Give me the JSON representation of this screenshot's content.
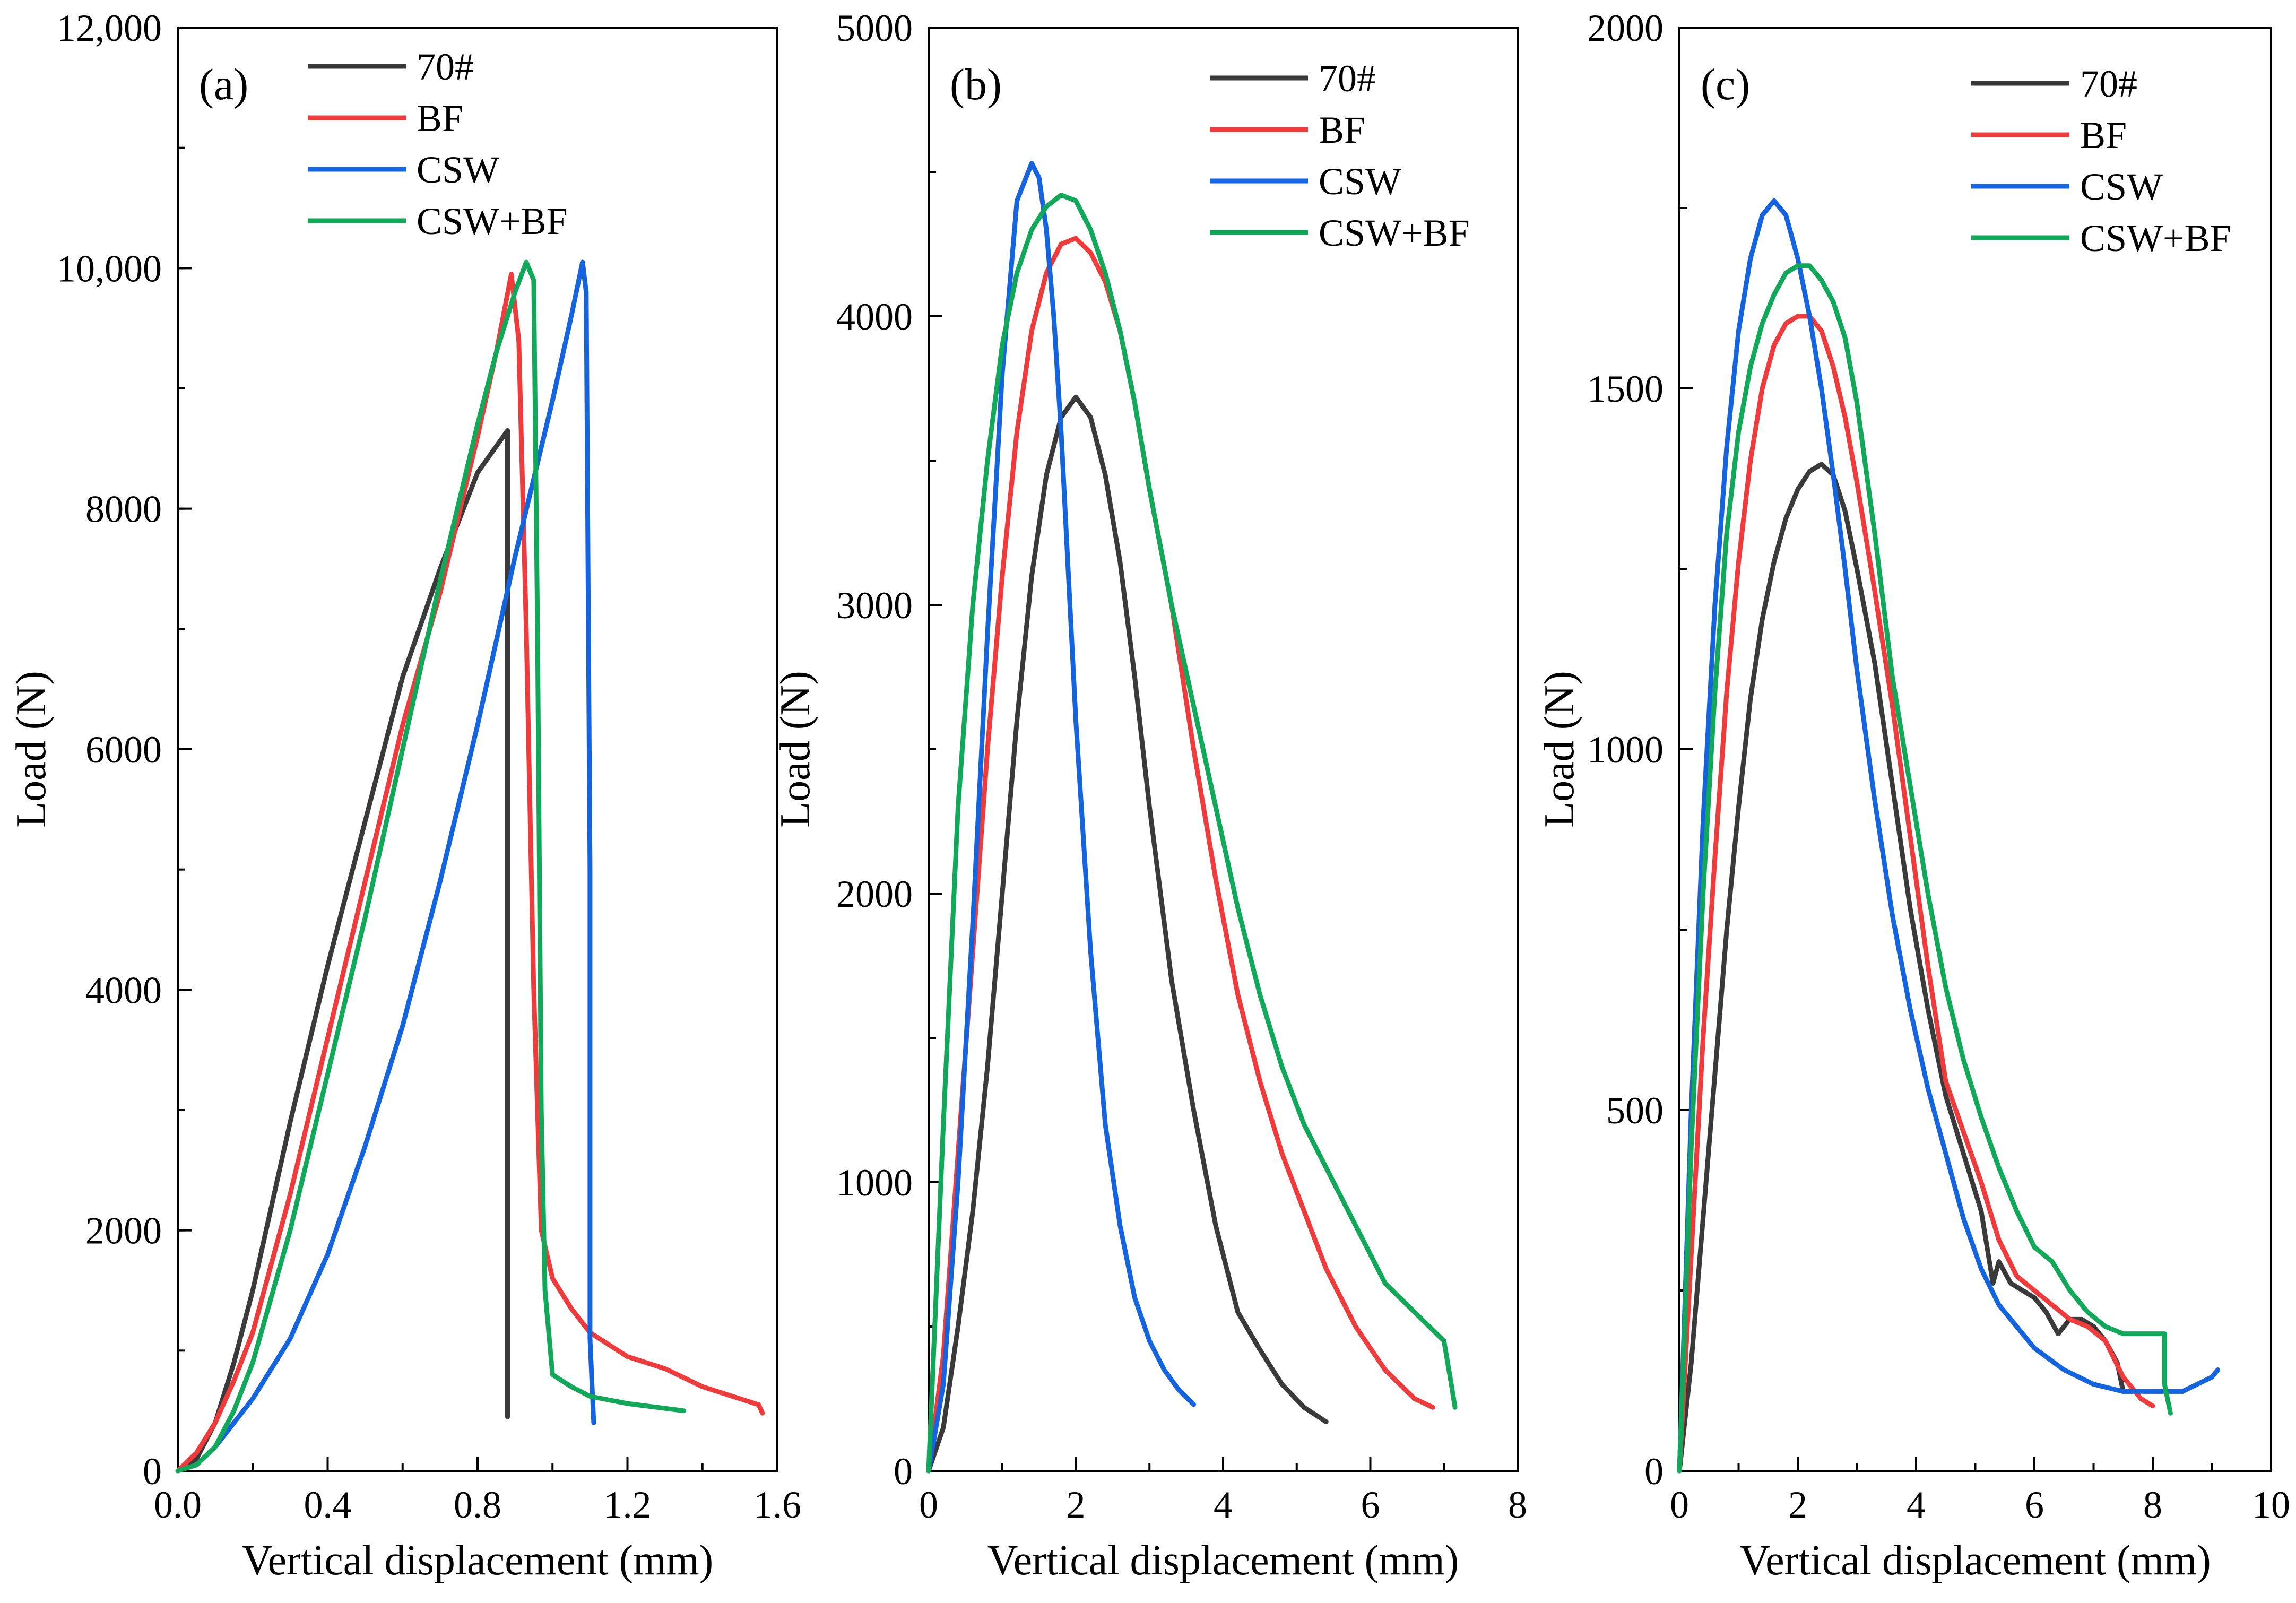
{
  "colors": {
    "70#": "#3a3a3a",
    "BF": "#ef3b3b",
    "CSW": "#1464e0",
    "CSW+BF": "#12a85a"
  },
  "chart_data": [
    {
      "type": "line",
      "panel_label": "(a)",
      "xlabel": "Vertical displacement (mm)",
      "ylabel": "Load (N)",
      "xlim": [
        0,
        1.6
      ],
      "ylim": [
        0,
        12000
      ],
      "xticks": [
        0.0,
        0.4,
        0.8,
        1.2,
        1.6
      ],
      "xtick_labels": [
        "0.0",
        "0.4",
        "0.8",
        "1.2",
        "1.6"
      ],
      "yticks": [
        0,
        2000,
        4000,
        6000,
        8000,
        10000,
        12000
      ],
      "ytick_labels": [
        "0",
        "2000",
        "4000",
        "6000",
        "8000",
        "10,000",
        "12,000"
      ],
      "x_minor": 0.2,
      "y_minor": 1000,
      "legend_position": "top-center",
      "series": [
        {
          "name": "70#",
          "x": [
            0,
            0.05,
            0.1,
            0.15,
            0.2,
            0.3,
            0.4,
            0.5,
            0.6,
            0.7,
            0.8,
            0.88,
            0.88,
            0.88
          ],
          "y": [
            0,
            100,
            400,
            900,
            1500,
            2900,
            4200,
            5400,
            6600,
            7500,
            8300,
            8650,
            3000,
            450
          ]
        },
        {
          "name": "BF",
          "x": [
            0,
            0.05,
            0.1,
            0.15,
            0.2,
            0.3,
            0.4,
            0.5,
            0.6,
            0.7,
            0.8,
            0.85,
            0.89,
            0.91,
            0.93,
            0.95,
            0.97,
            1.0,
            1.05,
            1.1,
            1.2,
            1.3,
            1.4,
            1.5,
            1.55,
            1.56
          ],
          "y": [
            0,
            150,
            400,
            750,
            1150,
            2300,
            3600,
            4900,
            6200,
            7300,
            8600,
            9300,
            9950,
            9400,
            7000,
            4000,
            2000,
            1600,
            1350,
            1150,
            950,
            850,
            700,
            600,
            550,
            480
          ]
        },
        {
          "name": "CSW",
          "x": [
            0,
            0.05,
            0.1,
            0.2,
            0.3,
            0.4,
            0.5,
            0.6,
            0.7,
            0.8,
            0.9,
            1.0,
            1.05,
            1.08,
            1.09,
            1.1,
            1.1,
            1.11
          ],
          "y": [
            0,
            50,
            200,
            600,
            1100,
            1800,
            2700,
            3700,
            4900,
            6200,
            7600,
            8900,
            9600,
            10050,
            9800,
            5000,
            1100,
            400
          ]
        },
        {
          "name": "CSW+BF",
          "x": [
            0,
            0.05,
            0.1,
            0.15,
            0.2,
            0.3,
            0.4,
            0.5,
            0.6,
            0.7,
            0.8,
            0.85,
            0.9,
            0.93,
            0.95,
            0.96,
            0.97,
            0.98,
            1.0,
            1.05,
            1.1,
            1.2,
            1.3,
            1.35
          ],
          "y": [
            0,
            50,
            200,
            500,
            900,
            2000,
            3300,
            4600,
            6000,
            7400,
            8700,
            9300,
            9800,
            10050,
            9900,
            7000,
            3000,
            1500,
            800,
            700,
            620,
            560,
            520,
            500
          ]
        }
      ]
    },
    {
      "type": "line",
      "panel_label": "(b)",
      "xlabel": "Vertical displacement (mm)",
      "ylabel": "Load (N)",
      "xlim": [
        0,
        8
      ],
      "ylim": [
        0,
        5000
      ],
      "xticks": [
        0,
        2,
        4,
        6,
        8
      ],
      "xtick_labels": [
        "0",
        "2",
        "4",
        "6",
        "8"
      ],
      "yticks": [
        0,
        1000,
        2000,
        3000,
        4000,
        5000
      ],
      "ytick_labels": [
        "0",
        "1000",
        "2000",
        "3000",
        "4000",
        "5000"
      ],
      "x_minor": 1,
      "y_minor": 500,
      "legend_position": "top-right",
      "series": [
        {
          "name": "70#",
          "x": [
            0,
            0.2,
            0.4,
            0.6,
            0.8,
            1.0,
            1.2,
            1.4,
            1.6,
            1.8,
            2.0,
            2.2,
            2.4,
            2.6,
            2.8,
            3.0,
            3.3,
            3.6,
            3.9,
            4.2,
            4.5,
            4.8,
            5.1,
            5.4
          ],
          "y": [
            0,
            150,
            500,
            900,
            1400,
            2000,
            2600,
            3100,
            3450,
            3650,
            3720,
            3650,
            3450,
            3150,
            2750,
            2300,
            1700,
            1250,
            850,
            550,
            420,
            300,
            220,
            170
          ]
        },
        {
          "name": "BF",
          "x": [
            0,
            0.2,
            0.4,
            0.6,
            0.8,
            1.0,
            1.2,
            1.4,
            1.6,
            1.8,
            2.0,
            2.2,
            2.4,
            2.6,
            2.8,
            3.0,
            3.3,
            3.6,
            3.9,
            4.2,
            4.5,
            4.8,
            5.1,
            5.4,
            5.8,
            6.2,
            6.6,
            6.85
          ],
          "y": [
            0,
            400,
            1100,
            1800,
            2500,
            3100,
            3600,
            3950,
            4150,
            4250,
            4270,
            4220,
            4120,
            3950,
            3700,
            3400,
            3000,
            2500,
            2050,
            1650,
            1350,
            1100,
            900,
            700,
            500,
            350,
            250,
            220
          ]
        },
        {
          "name": "CSW",
          "x": [
            0,
            0.2,
            0.4,
            0.6,
            0.8,
            1.0,
            1.2,
            1.4,
            1.5,
            1.6,
            1.7,
            1.8,
            1.9,
            2.0,
            2.2,
            2.4,
            2.6,
            2.8,
            3.0,
            3.2,
            3.4,
            3.6
          ],
          "y": [
            0,
            300,
            1000,
            1900,
            2900,
            3800,
            4400,
            4530,
            4480,
            4300,
            4000,
            3600,
            3100,
            2600,
            1800,
            1200,
            850,
            600,
            450,
            350,
            280,
            230
          ]
        },
        {
          "name": "CSW+BF",
          "x": [
            0,
            0.2,
            0.4,
            0.6,
            0.8,
            1.0,
            1.2,
            1.4,
            1.6,
            1.8,
            2.0,
            2.2,
            2.4,
            2.6,
            2.8,
            3.0,
            3.3,
            3.6,
            3.9,
            4.2,
            4.5,
            4.8,
            5.1,
            5.4,
            5.8,
            6.2,
            6.6,
            7.0,
            7.1,
            7.15
          ],
          "y": [
            0,
            1200,
            2300,
            3000,
            3500,
            3900,
            4150,
            4300,
            4380,
            4420,
            4400,
            4300,
            4150,
            3950,
            3700,
            3400,
            3000,
            2650,
            2300,
            1950,
            1650,
            1400,
            1200,
            1050,
            850,
            650,
            550,
            450,
            300,
            220
          ]
        }
      ]
    },
    {
      "type": "line",
      "panel_label": "(c)",
      "xlabel": "Vertical displacement (mm)",
      "ylabel": "Load (N)",
      "xlim": [
        0,
        10
      ],
      "ylim": [
        0,
        2000
      ],
      "xticks": [
        0,
        2,
        4,
        6,
        8,
        10
      ],
      "xtick_labels": [
        "0",
        "2",
        "4",
        "6",
        "8",
        "10"
      ],
      "yticks": [
        0,
        500,
        1000,
        1500,
        2000
      ],
      "ytick_labels": [
        "0",
        "500",
        "1000",
        "1500",
        "2000"
      ],
      "x_minor": 1,
      "y_minor": 250,
      "legend_position": "top-right",
      "series": [
        {
          "name": "70#",
          "x": [
            0,
            0.2,
            0.4,
            0.6,
            0.8,
            1.0,
            1.2,
            1.4,
            1.6,
            1.8,
            2.0,
            2.2,
            2.4,
            2.6,
            2.8,
            3.0,
            3.3,
            3.6,
            3.9,
            4.2,
            4.5,
            4.8,
            5.1,
            5.3,
            5.4,
            5.6,
            5.8,
            6.0,
            6.2,
            6.4,
            6.6,
            6.8,
            7.0,
            7.2,
            7.4,
            7.5
          ],
          "y": [
            0,
            150,
            350,
            550,
            750,
            920,
            1070,
            1180,
            1260,
            1320,
            1360,
            1385,
            1395,
            1380,
            1330,
            1250,
            1120,
            950,
            780,
            640,
            520,
            440,
            360,
            260,
            290,
            260,
            250,
            240,
            220,
            190,
            210,
            210,
            200,
            180,
            150,
            110
          ]
        },
        {
          "name": "BF",
          "x": [
            0,
            0.2,
            0.4,
            0.6,
            0.8,
            1.0,
            1.2,
            1.4,
            1.6,
            1.8,
            2.0,
            2.2,
            2.4,
            2.6,
            2.8,
            3.0,
            3.3,
            3.6,
            3.9,
            4.2,
            4.5,
            4.8,
            5.1,
            5.4,
            5.7,
            6.0,
            6.3,
            6.6,
            6.9,
            7.2,
            7.5,
            7.8,
            8.0
          ],
          "y": [
            0,
            300,
            600,
            850,
            1080,
            1260,
            1400,
            1500,
            1560,
            1590,
            1600,
            1600,
            1580,
            1530,
            1460,
            1370,
            1220,
            1060,
            880,
            700,
            540,
            470,
            400,
            320,
            270,
            250,
            230,
            210,
            200,
            180,
            130,
            100,
            90
          ]
        },
        {
          "name": "CSW",
          "x": [
            0,
            0.2,
            0.4,
            0.6,
            0.8,
            1.0,
            1.2,
            1.4,
            1.6,
            1.8,
            2.0,
            2.2,
            2.4,
            2.6,
            2.8,
            3.0,
            3.3,
            3.6,
            3.9,
            4.2,
            4.5,
            4.8,
            5.1,
            5.4,
            5.7,
            6.0,
            6.5,
            7.0,
            7.5,
            8.0,
            8.5,
            9.0,
            9.1
          ],
          "y": [
            0,
            500,
            900,
            1200,
            1420,
            1580,
            1680,
            1740,
            1760,
            1740,
            1680,
            1600,
            1500,
            1380,
            1250,
            1110,
            930,
            770,
            640,
            530,
            440,
            350,
            280,
            230,
            200,
            170,
            140,
            120,
            110,
            110,
            110,
            130,
            140
          ]
        },
        {
          "name": "CSW+BF",
          "x": [
            0,
            0.2,
            0.4,
            0.6,
            0.8,
            1.0,
            1.2,
            1.4,
            1.6,
            1.8,
            2.0,
            2.2,
            2.4,
            2.6,
            2.8,
            3.0,
            3.3,
            3.6,
            3.9,
            4.2,
            4.5,
            4.8,
            5.1,
            5.4,
            5.7,
            6.0,
            6.3,
            6.6,
            6.9,
            7.2,
            7.5,
            7.8,
            8.0,
            8.2,
            8.2,
            8.3
          ],
          "y": [
            0,
            450,
            800,
            1080,
            1300,
            1440,
            1530,
            1590,
            1630,
            1660,
            1670,
            1670,
            1650,
            1620,
            1570,
            1480,
            1300,
            1100,
            950,
            800,
            670,
            570,
            490,
            420,
            360,
            310,
            290,
            250,
            220,
            200,
            190,
            190,
            190,
            190,
            120,
            80
          ]
        }
      ]
    }
  ]
}
